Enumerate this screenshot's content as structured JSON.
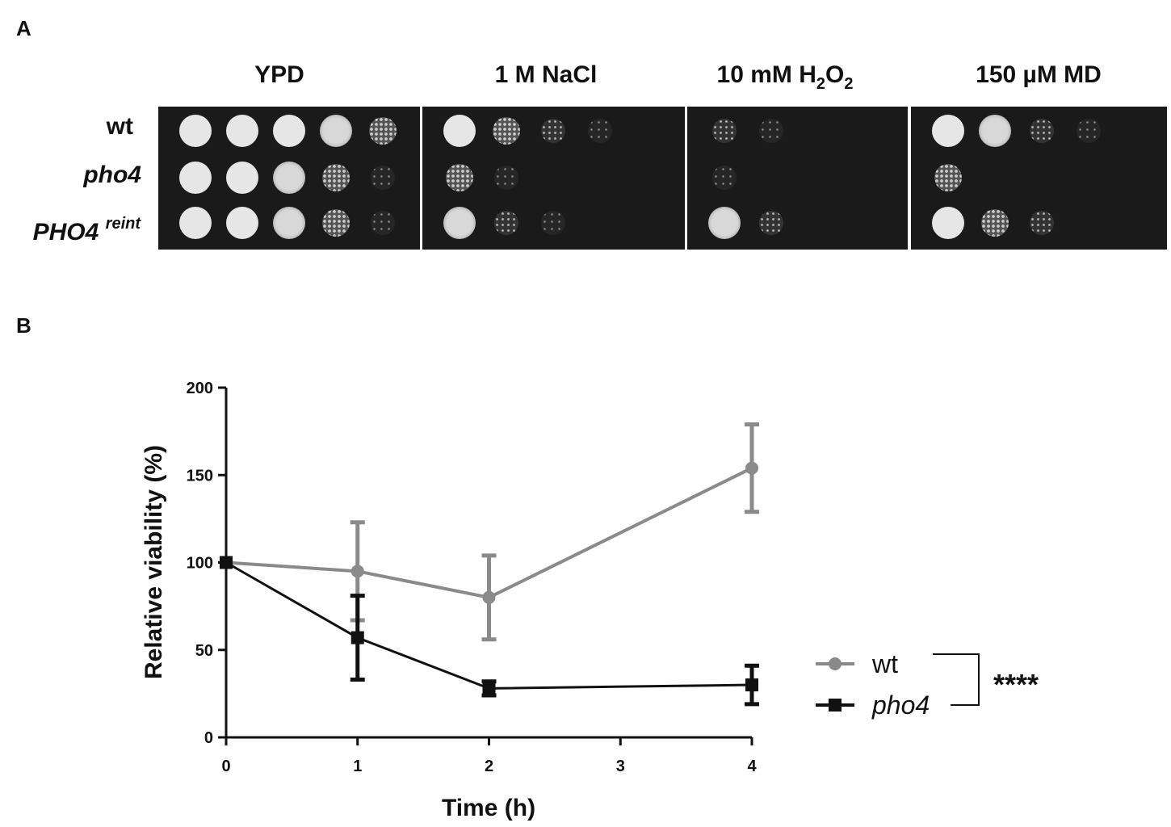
{
  "panel_a": {
    "letter": "A",
    "conditions": [
      {
        "label": "YPD"
      },
      {
        "label": "1 M NaCl"
      },
      {
        "label_pre": "10 mM H",
        "label_sub1": "2",
        "label_mid": "O",
        "label_sub2": "2"
      },
      {
        "label": "150 µM MD"
      }
    ],
    "strains": [
      {
        "label": "wt",
        "italic": false
      },
      {
        "label": "pho4",
        "italic": true
      },
      {
        "label": "PHO4",
        "superscript": "reint",
        "italic": true
      }
    ],
    "growth_levels": [
      [
        [
          5,
          5,
          5,
          4,
          3
        ],
        [
          5,
          3,
          2,
          1,
          0
        ],
        [
          2,
          1,
          0,
          0,
          0
        ],
        [
          5,
          4,
          2,
          1,
          0
        ]
      ],
      [
        [
          5,
          5,
          4,
          3,
          1
        ],
        [
          3,
          1,
          0,
          0,
          0
        ],
        [
          1,
          0,
          0,
          0,
          0
        ],
        [
          3,
          0,
          0,
          0,
          0
        ]
      ],
      [
        [
          5,
          5,
          4,
          3,
          1
        ],
        [
          4,
          2,
          1,
          0,
          0
        ],
        [
          4,
          2,
          0,
          0,
          0
        ],
        [
          5,
          3,
          2,
          0,
          0
        ]
      ]
    ],
    "colors": {
      "plate": "#1a1a1a",
      "colony": "#e6e6e6"
    }
  },
  "panel_b": {
    "letter": "B",
    "significance": "****"
  },
  "chart_data": {
    "type": "line",
    "xlabel": "Time (h)",
    "ylabel": "Relative viability (%)",
    "xlim": [
      0,
      4
    ],
    "ylim": [
      0,
      200
    ],
    "xticks": [
      0,
      1,
      2,
      3,
      4
    ],
    "yticks": [
      0,
      50,
      100,
      150,
      200
    ],
    "legend_position": "right",
    "series": [
      {
        "name": "wt",
        "marker": "circle",
        "color": "#8a8a8a",
        "x": [
          0,
          1,
          2,
          4
        ],
        "y": [
          100,
          95,
          80,
          154
        ],
        "error": [
          0,
          28,
          24,
          25
        ]
      },
      {
        "name": "pho4",
        "name_italic": true,
        "marker": "square",
        "color": "#111111",
        "x": [
          0,
          1,
          2,
          4
        ],
        "y": [
          100,
          57,
          28,
          30
        ],
        "error": [
          0,
          24,
          4,
          11
        ]
      }
    ]
  }
}
